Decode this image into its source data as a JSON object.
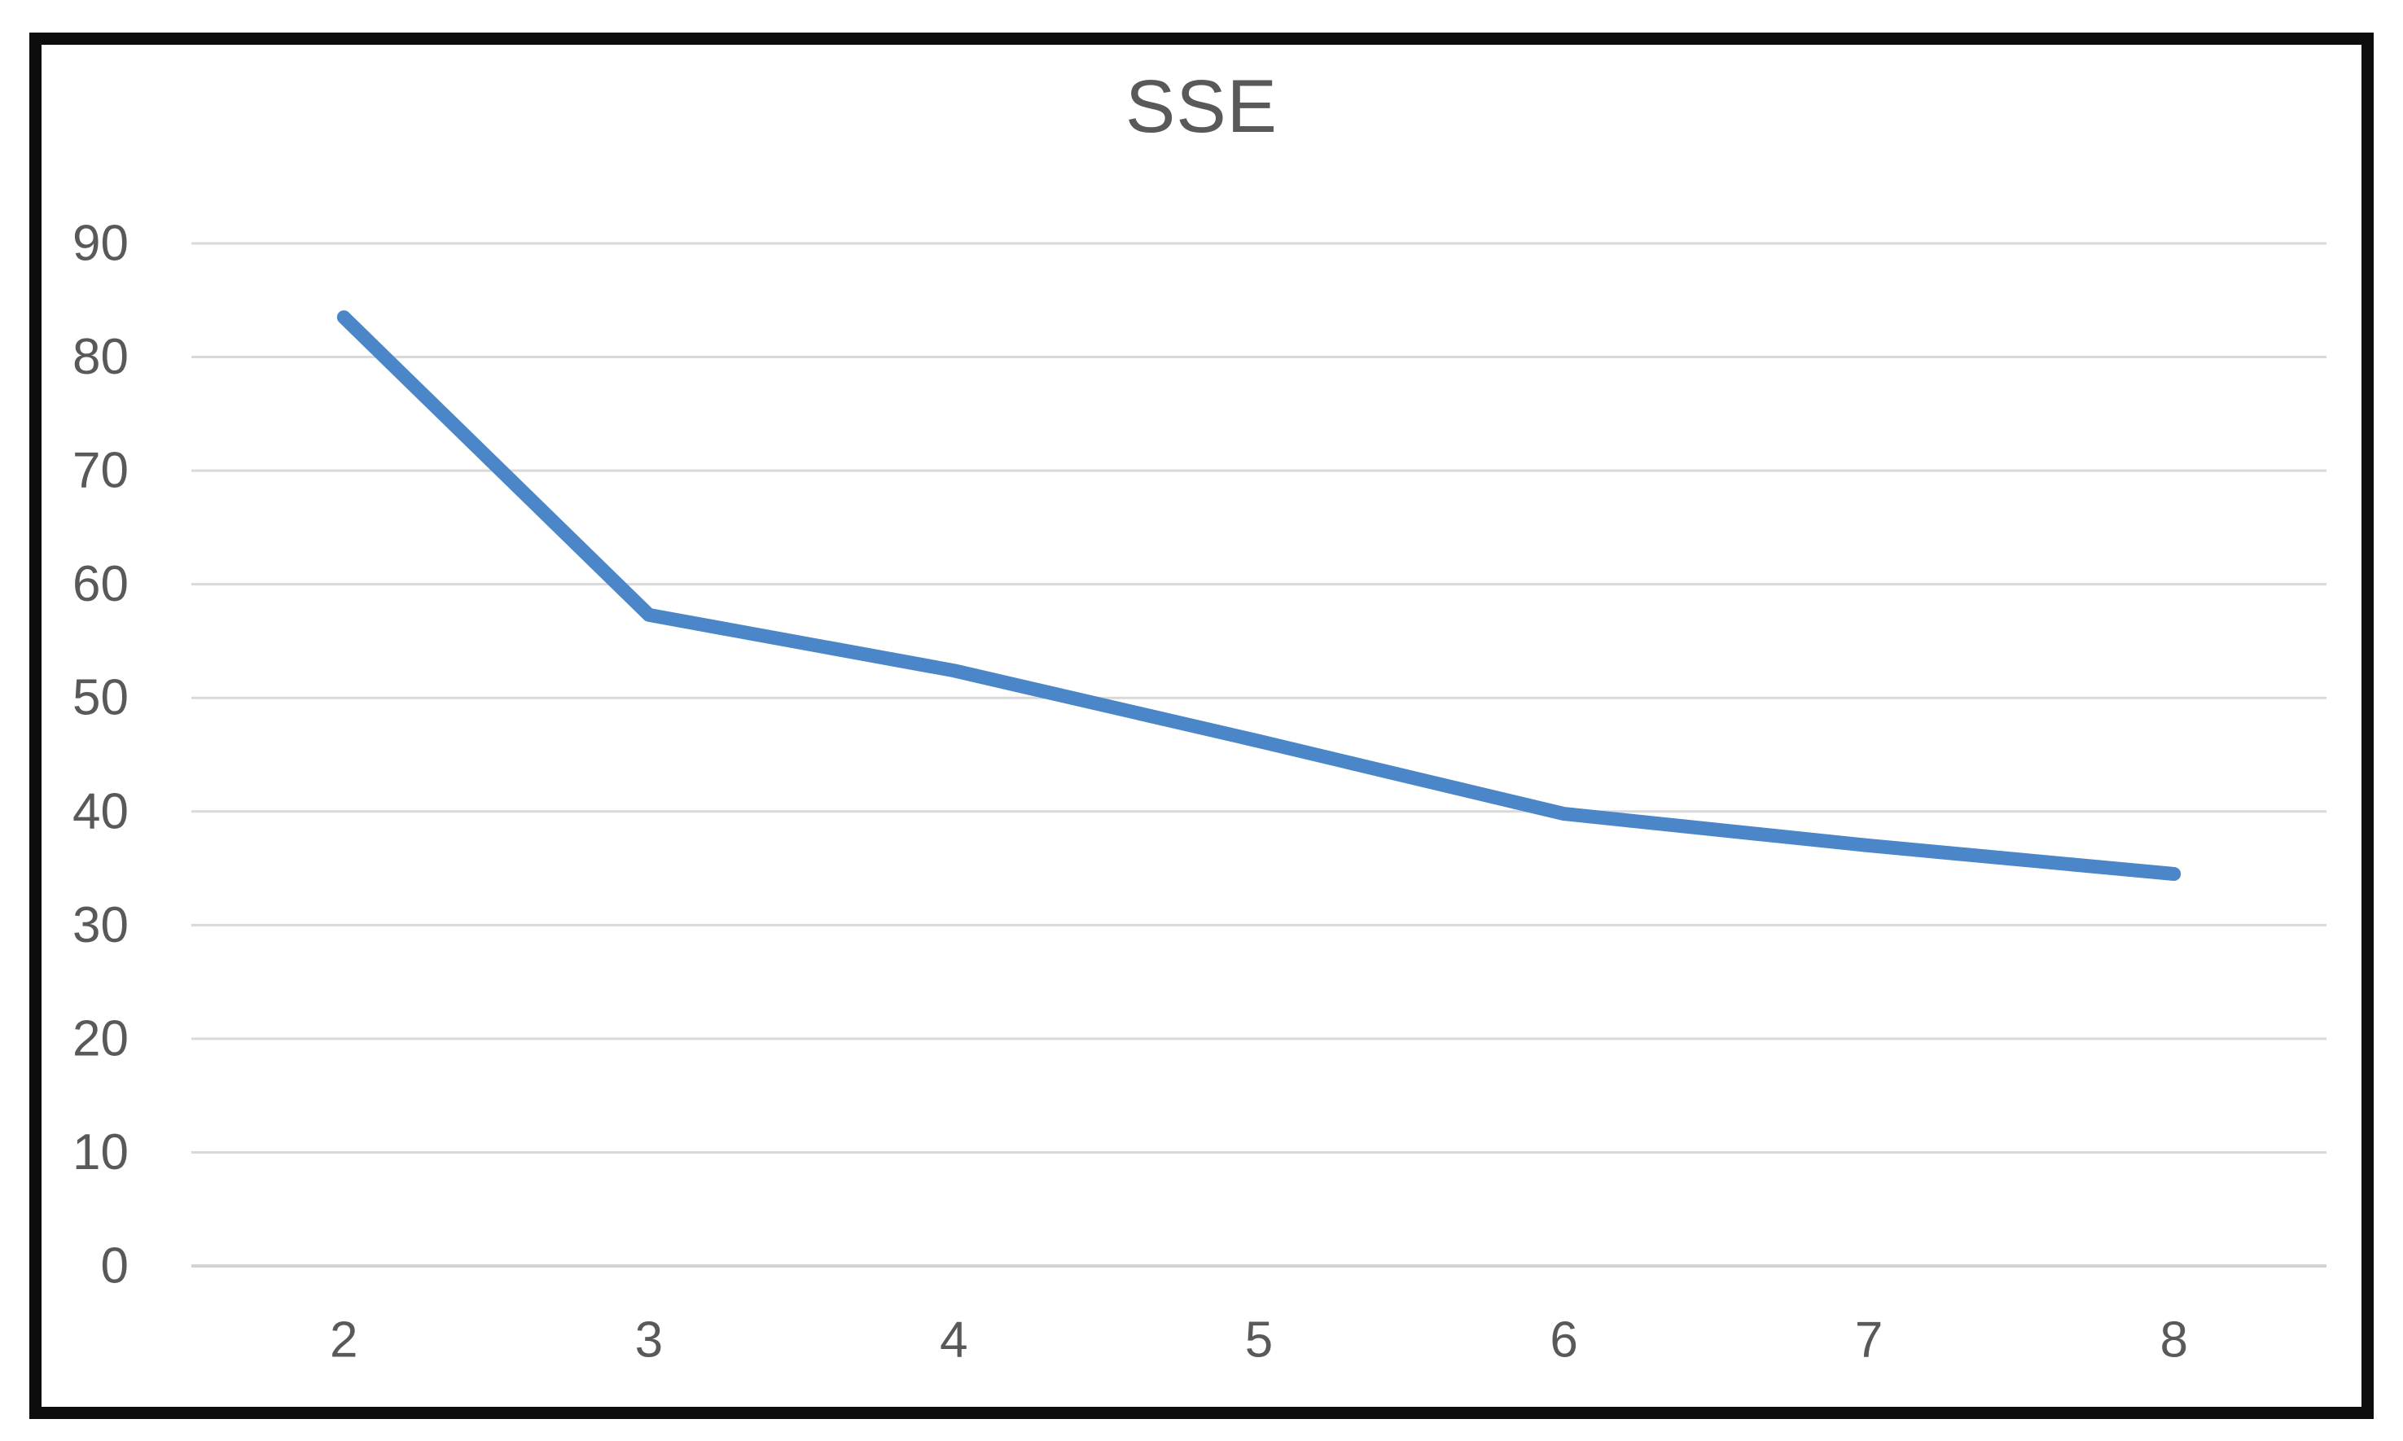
{
  "chart_data": {
    "type": "line",
    "title": "SSE",
    "categories": [
      "2",
      "3",
      "4",
      "5",
      "6",
      "7",
      "8"
    ],
    "series": [
      {
        "name": "SSE",
        "values": [
          83.5,
          57.3,
          52.4,
          46.2,
          39.8,
          37.0,
          34.5
        ]
      }
    ],
    "xlabel": "",
    "ylabel": "",
    "ylim": [
      0,
      90
    ],
    "ytick_step": 10,
    "ytick_labels": [
      "0",
      "10",
      "20",
      "30",
      "40",
      "50",
      "60",
      "70",
      "80",
      "90"
    ],
    "grid": "horizontal",
    "legend": "none",
    "colors": {
      "line": "#4A86C8",
      "gridline": "#D9D9D9",
      "axis_line": "#D3D3D3",
      "axis_text": "#595959",
      "title_text": "#595959",
      "frame_border": "#0D0D0D",
      "background": "#FFFFFF"
    }
  }
}
